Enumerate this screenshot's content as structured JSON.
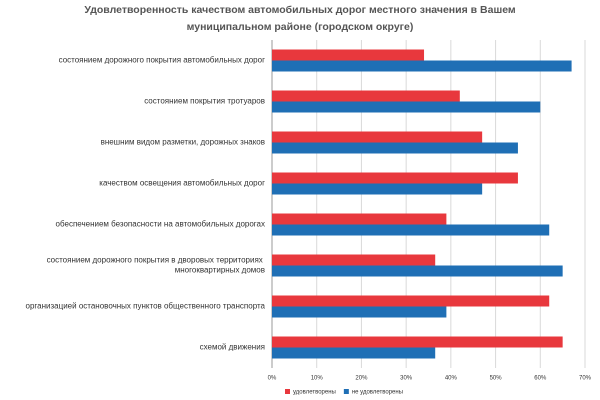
{
  "chart_data": {
    "type": "barh",
    "title": [
      "Удовлетворенность качеством автомобильных дорог местного значения в Вашем",
      "муниципальном районе (городском округе)"
    ],
    "categories": [
      "состоянием дорожного покрытия автомобильных дорог",
      "состоянием покрытия тротуаров",
      "внешним видом разметки, дорожных знаков",
      "качеством освещения автомобильных дорог",
      "обеспечением безопасности на автомобильных дорогах",
      "состоянием дорожного покрытия в дворовых территориях многоквартирных домов",
      "организацией остановочных пунктов общественного транспорта",
      "схемой движения"
    ],
    "series": [
      {
        "name": "удовлетворены",
        "color": "#e8383d",
        "values": [
          34,
          42,
          47,
          55,
          39,
          36.5,
          62,
          65
        ]
      },
      {
        "name": "не удовлетворены",
        "color": "#1f6fb5",
        "values": [
          67,
          60,
          55,
          47,
          62,
          65,
          39,
          36.5
        ]
      }
    ],
    "xlim": [
      0,
      70
    ],
    "xticks": [
      {
        "value": 0,
        "label": "0%"
      },
      {
        "value": 10,
        "label": "10%"
      },
      {
        "value": 20,
        "label": "20%"
      },
      {
        "value": 30,
        "label": "30%"
      },
      {
        "value": 40,
        "label": "40%"
      },
      {
        "value": 50,
        "label": "50%"
      },
      {
        "value": 60,
        "label": "60%"
      },
      {
        "value": 70,
        "label": "70%"
      }
    ],
    "grid": true
  }
}
